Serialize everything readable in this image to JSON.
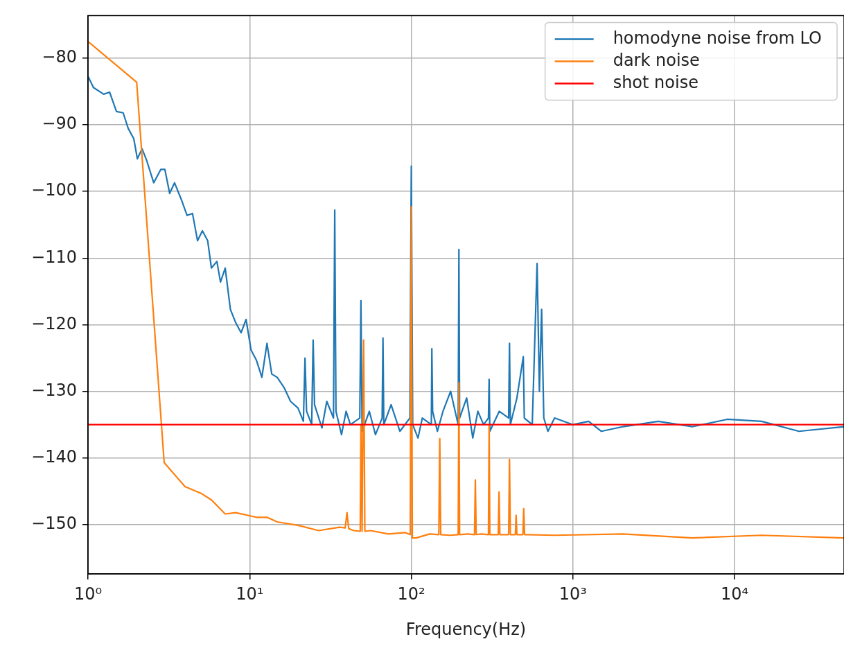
{
  "chart_data": {
    "type": "line",
    "xlabel": "Frequency(Hz)",
    "log": "x",
    "grid": true,
    "legend": "top right",
    "marker": "none",
    "line_style": "solid",
    "xlim": [
      1,
      47500
    ],
    "xticks": [
      {
        "value": 1,
        "label": "10⁰"
      },
      {
        "value": 10,
        "label": "10¹"
      },
      {
        "value": 100,
        "label": "10²"
      },
      {
        "value": 1000,
        "label": "10³"
      },
      {
        "value": 10000,
        "label": "10⁴"
      }
    ],
    "ylim": [
      -157.4,
      -73.6
    ],
    "yticks": [
      {
        "value": -80,
        "label": "−80"
      },
      {
        "value": -90,
        "label": "−90"
      },
      {
        "value": -100,
        "label": "−100"
      },
      {
        "value": -110,
        "label": "−110"
      },
      {
        "value": -120,
        "label": "−120"
      },
      {
        "value": -130,
        "label": "−130"
      },
      {
        "value": -140,
        "label": "−140"
      },
      {
        "value": -150,
        "label": "−150"
      }
    ],
    "series": [
      {
        "name": "homodyne noise from LO",
        "color": "#1f77b4",
        "x": [
          1,
          1.08,
          1.25,
          1.36,
          1.5,
          1.65,
          1.77,
          1.92,
          2.02,
          2.16,
          2.31,
          2.55,
          2.82,
          2.99,
          3.2,
          3.43,
          3.79,
          4.1,
          4.43,
          4.76,
          5.1,
          5.5,
          5.8,
          6.27,
          6.6,
          7.06,
          7.6,
          8.2,
          8.85,
          9.5,
          10.2,
          11,
          11.9,
          12.8,
          13.7,
          14.8,
          16.3,
          17.9,
          19.9,
          21.5,
          22,
          22.5,
          24.2,
          24.7,
          25.2,
          28,
          30,
          33,
          33.6,
          34.2,
          37,
          39.5,
          42,
          48,
          48.8,
          49.6,
          55,
          60,
          66,
          66.8,
          67.6,
          75,
          85,
          98,
          100,
          102,
          110,
          117,
          133,
          134,
          135.5,
          145,
          157,
          175,
          195,
          197,
          199,
          220,
          240,
          258,
          280,
          300,
          303,
          306,
          350,
          400,
          405,
          410,
          450,
          493,
          500,
          560,
          600,
          620,
          640,
          660,
          700,
          770,
          1000,
          1250,
          1500,
          2040,
          3370,
          5500,
          9000,
          14700,
          25000,
          47500
        ],
        "values": [
          -82.7,
          -84.4,
          -85.4,
          -85.1,
          -88.0,
          -88.2,
          -90.5,
          -92.1,
          -95.1,
          -93.6,
          -95.4,
          -98.7,
          -96.7,
          -96.7,
          -100.3,
          -98.7,
          -101.3,
          -103.6,
          -103.3,
          -107.4,
          -105.9,
          -107.4,
          -111.5,
          -110.5,
          -113.6,
          -111.5,
          -117.7,
          -119.7,
          -121.2,
          -119.2,
          -123.8,
          -125.3,
          -127.9,
          -122.8,
          -127.4,
          -127.9,
          -129.4,
          -131.5,
          -132.5,
          -134.5,
          -125,
          -133,
          -135,
          -122.3,
          -132,
          -135.5,
          -131.5,
          -134,
          -102.8,
          -133,
          -136.5,
          -133,
          -135,
          -134,
          -116.4,
          -136,
          -133,
          -136.5,
          -134,
          -122,
          -135,
          -132,
          -136,
          -134,
          -96.2,
          -135,
          -137,
          -134,
          -135,
          -123.6,
          -133,
          -136,
          -133,
          -130,
          -135,
          -108.7,
          -134,
          -131,
          -137,
          -133,
          -135,
          -134,
          -128.2,
          -136,
          -133,
          -134,
          -122.8,
          -135,
          -131,
          -124.8,
          -134,
          -135,
          -110.8,
          -130,
          -117.7,
          -134,
          -136,
          -134,
          -135,
          -134.5,
          -136,
          -135.3,
          -134.5,
          -135.3,
          -134.2,
          -134.5,
          -136,
          -135.3
        ]
      },
      {
        "name": "dark noise",
        "color": "#ff7f0e",
        "x": [
          1,
          2,
          2.96,
          3.98,
          5,
          5.8,
          7.06,
          8.2,
          11,
          12.8,
          14.8,
          19.9,
          26.7,
          36,
          39,
          40,
          41,
          44,
          48.3,
          48.8,
          49.6,
          50.7,
          51.6,
          56,
          72,
          92,
          98.5,
          100,
          101.5,
          107,
          130,
          148,
          150,
          152,
          174,
          195,
          197,
          199,
          223,
          246,
          249,
          252,
          270,
          300,
          303,
          306,
          345,
          349,
          353,
          400,
          405,
          410,
          440,
          445,
          450,
          490,
          496,
          502,
          770,
          2040,
          5500,
          14700,
          47500
        ],
        "values": [
          -77.5,
          -83.6,
          -140.7,
          -144.3,
          -145.3,
          -146.3,
          -148.4,
          -148.2,
          -148.9,
          -148.9,
          -149.6,
          -150.1,
          -150.9,
          -150.4,
          -150.5,
          -148.2,
          -150.6,
          -150.9,
          -151,
          -135,
          -151,
          -122.3,
          -151,
          -150.9,
          -151.4,
          -151.2,
          -151.5,
          -102.3,
          -152,
          -152,
          -151.4,
          -151.5,
          -137.1,
          -151.5,
          -151.6,
          -151.5,
          -128.7,
          -151.5,
          -151.4,
          -151.5,
          -143.3,
          -151.5,
          -151.4,
          -151.5,
          -135,
          -151.5,
          -151.5,
          -145.1,
          -151.5,
          -151.5,
          -140.2,
          -151.5,
          -151.5,
          -148.6,
          -151.5,
          -151.5,
          -147.6,
          -151.5,
          -151.6,
          -151.4,
          -152,
          -151.6,
          -152
        ]
      },
      {
        "name": "shot noise",
        "color": "#ff0000",
        "x": [
          1,
          47500
        ],
        "values": [
          -135,
          -135
        ]
      }
    ]
  }
}
